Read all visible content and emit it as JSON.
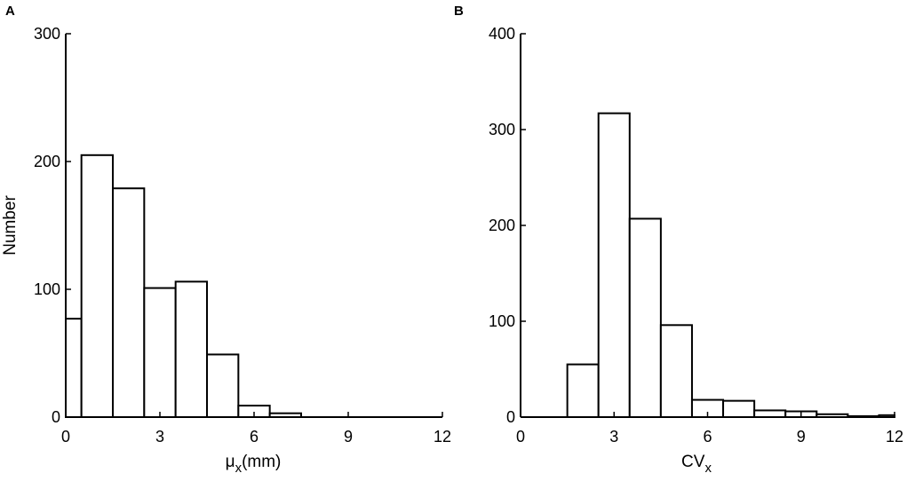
{
  "chart_data": [
    {
      "panel_label": "A",
      "type": "bar",
      "title": "",
      "xlabel": "μ",
      "xlabel_sub": "x",
      "xlabel_suffix": "(mm)",
      "ylabel": "Number",
      "xlim": [
        0,
        12
      ],
      "ylim": [
        0,
        300
      ],
      "xticks": [
        0,
        3,
        6,
        9,
        12
      ],
      "yticks": [
        0,
        100,
        200,
        300
      ],
      "bin_width": 1,
      "bin_centers": [
        0,
        1,
        2,
        3,
        4,
        5,
        6,
        7,
        8,
        9,
        10,
        11,
        12
      ],
      "values": [
        77,
        205,
        179,
        101,
        106,
        49,
        9,
        3,
        0,
        0,
        0,
        0,
        0
      ],
      "grid": false,
      "legend": "none",
      "bar_fill": "#ffffff",
      "bar_stroke": "#000000"
    },
    {
      "panel_label": "B",
      "type": "bar",
      "title": "",
      "xlabel": "CV",
      "xlabel_sub": "x",
      "xlabel_suffix": "",
      "ylabel": "",
      "xlim": [
        0,
        12
      ],
      "ylim": [
        0,
        400
      ],
      "xticks": [
        0,
        3,
        6,
        9,
        12
      ],
      "yticks": [
        0,
        100,
        200,
        300,
        400
      ],
      "bin_width": 1,
      "bin_centers": [
        0,
        1,
        2,
        3,
        4,
        5,
        6,
        7,
        8,
        9,
        10,
        11,
        12
      ],
      "values": [
        0,
        0,
        55,
        317,
        207,
        96,
        18,
        17,
        7,
        6,
        3,
        1,
        2
      ],
      "grid": false,
      "legend": "none",
      "bar_fill": "#ffffff",
      "bar_stroke": "#000000"
    }
  ]
}
